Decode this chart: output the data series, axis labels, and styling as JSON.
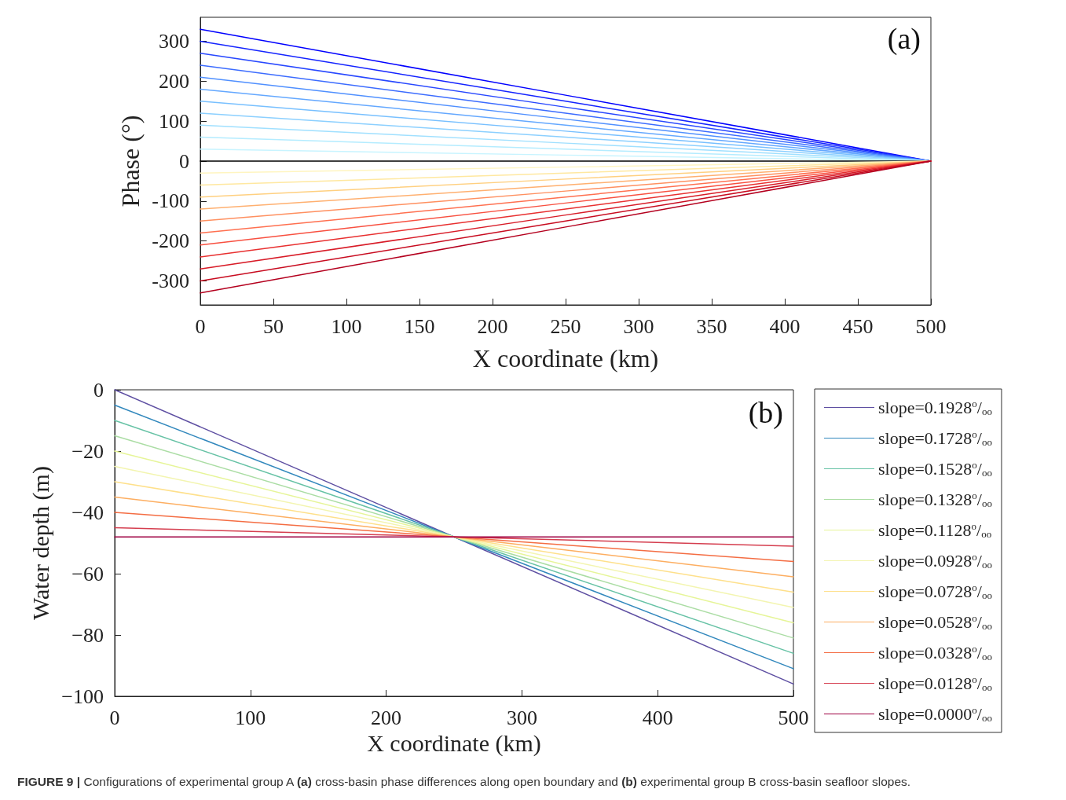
{
  "chart_data": [
    {
      "type": "line",
      "xlabel": "X coordinate (km)",
      "ylabel": "Phase (°)",
      "annotations": [
        "(a)"
      ],
      "x": [
        0,
        250,
        500
      ],
      "xlim": [
        0,
        500
      ],
      "xticks": [
        0,
        50,
        100,
        150,
        200,
        250,
        300,
        350,
        400,
        450,
        500
      ],
      "ylim": [
        -360,
        360
      ],
      "yticks": [
        -300,
        -200,
        -100,
        0,
        100,
        200,
        300
      ],
      "grid": false,
      "legend": false,
      "marker": "none",
      "line_style": "solid",
      "series": [
        {
          "color": "#0000ff",
          "values": [
            330,
            165,
            0
          ]
        },
        {
          "color": "#1424ff",
          "values": [
            300,
            150,
            0
          ]
        },
        {
          "color": "#2848ff",
          "values": [
            270,
            135,
            0
          ]
        },
        {
          "color": "#3c6cff",
          "values": [
            240,
            120,
            0
          ]
        },
        {
          "color": "#5090ff",
          "values": [
            210,
            105,
            0
          ]
        },
        {
          "color": "#64a8ff",
          "values": [
            180,
            90,
            0
          ]
        },
        {
          "color": "#78c0ff",
          "values": [
            150,
            75,
            0
          ]
        },
        {
          "color": "#8cd0ff",
          "values": [
            120,
            60,
            0
          ]
        },
        {
          "color": "#a0e0ff",
          "values": [
            90,
            45,
            0
          ]
        },
        {
          "color": "#b4ecff",
          "values": [
            60,
            30,
            0
          ]
        },
        {
          "color": "#c8f4ff",
          "values": [
            30,
            15,
            0
          ]
        },
        {
          "color": "#000000",
          "values": [
            0,
            0,
            0
          ]
        },
        {
          "color": "#fff5c0",
          "values": [
            -30,
            -15,
            0
          ]
        },
        {
          "color": "#ffe8a0",
          "values": [
            -60,
            -30,
            0
          ]
        },
        {
          "color": "#ffd080",
          "values": [
            -90,
            -45,
            0
          ]
        },
        {
          "color": "#ffb070",
          "values": [
            -120,
            -60,
            0
          ]
        },
        {
          "color": "#ff9060",
          "values": [
            -150,
            -75,
            0
          ]
        },
        {
          "color": "#ff7050",
          "values": [
            -180,
            -90,
            0
          ]
        },
        {
          "color": "#f85040",
          "values": [
            -210,
            -105,
            0
          ]
        },
        {
          "color": "#e83030",
          "values": [
            -240,
            -120,
            0
          ]
        },
        {
          "color": "#d81c28",
          "values": [
            -270,
            -135,
            0
          ]
        },
        {
          "color": "#c80c20",
          "values": [
            -300,
            -150,
            0
          ]
        },
        {
          "color": "#b4001e",
          "values": [
            -330,
            -165,
            0
          ]
        }
      ]
    },
    {
      "type": "line",
      "xlabel": "X coordinate (km)",
      "ylabel": "Water depth (m)",
      "annotations": [
        "(b)",
        "FIGURE 9 | Configurations of experimental group A (a) cross-basin phase differences along open boundary and (b) experimental group B cross-basin seafloor slopes."
      ],
      "x": [
        0,
        250,
        500
      ],
      "xlim": [
        0,
        500
      ],
      "xticks": [
        0,
        100,
        200,
        300,
        400,
        500
      ],
      "ylim": [
        -100,
        0
      ],
      "yticks": [
        {
          "value": -100,
          "label": "−100"
        },
        {
          "value": -80,
          "label": "−80"
        },
        {
          "value": -60,
          "label": "−60"
        },
        {
          "value": -40,
          "label": "−40"
        },
        {
          "value": -20,
          "label": "−20"
        },
        0
      ],
      "grid": false,
      "legend": "right",
      "marker": "none",
      "line_style": "solid",
      "series": [
        {
          "name": "slope=0.1928$^{o}$/$_{oo}$",
          "color": "#5e4fa2",
          "values": [
            0,
            -48,
            -96
          ]
        },
        {
          "name": "slope=0.1728$^{o}$/$_{oo}$",
          "color": "#3288bd",
          "values": [
            -5,
            -48,
            -91
          ]
        },
        {
          "name": "slope=0.1528$^{o}$/$_{oo}$",
          "color": "#66c2a5",
          "values": [
            -10,
            -48,
            -86
          ]
        },
        {
          "name": "slope=0.1328$^{o}$/$_{oo}$",
          "color": "#abdda4",
          "values": [
            -15,
            -48,
            -81
          ]
        },
        {
          "name": "slope=0.1128$^{o}$/$_{oo}$",
          "color": "#e6f598",
          "values": [
            -20,
            -48,
            -76
          ]
        },
        {
          "name": "slope=0.0928$^{o}$/$_{oo}$",
          "color": "#f3f5b0",
          "values": [
            -25,
            -48,
            -71
          ]
        },
        {
          "name": "slope=0.0728$^{o}$/$_{oo}$",
          "color": "#fee08b",
          "values": [
            -30,
            -48,
            -66
          ]
        },
        {
          "name": "slope=0.0528$^{o}$/$_{oo}$",
          "color": "#fdae61",
          "values": [
            -35,
            -48,
            -61
          ]
        },
        {
          "name": "slope=0.0328$^{o}$/$_{oo}$",
          "color": "#f46d43",
          "values": [
            -40,
            -48,
            -56
          ]
        },
        {
          "name": "slope=0.0128$^{o}$/$_{oo}$",
          "color": "#d53e4f",
          "values": [
            -45,
            -48,
            -51
          ]
        },
        {
          "name": "slope=0.0000$^{o}$/$_{oo}$",
          "color": "#9e0142",
          "values": [
            -48,
            -48,
            -48
          ]
        }
      ]
    }
  ]
}
